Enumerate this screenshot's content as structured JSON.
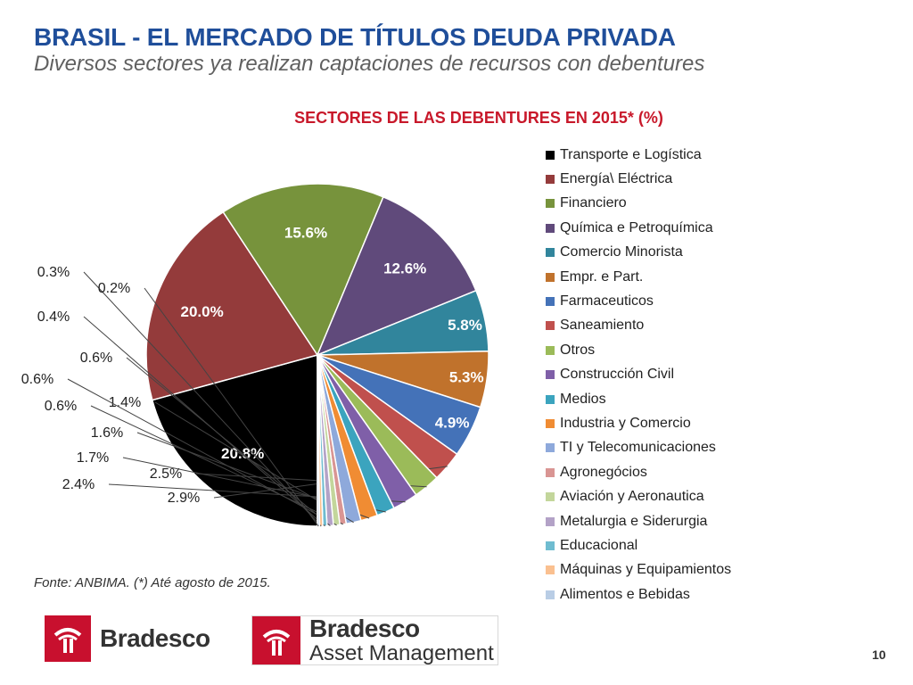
{
  "header": {
    "title": "BRASIL - EL MERCADO DE TÍTULOS DEUDA PRIVADA",
    "subtitle": "Diversos sectores ya realizan captaciones de recursos con debentures"
  },
  "chart_data": {
    "type": "pie",
    "title": "SECTORES DE LAS DEBENTURES EN 2015* (%)",
    "legend_position": "right",
    "slices": [
      {
        "label": "Transporte e Logística",
        "value": 20.8,
        "value_label": "20.8%",
        "color": "#000000"
      },
      {
        "label": "Energía\\ Eléctrica",
        "value": 20.0,
        "value_label": "20.0%",
        "color": "#943b3b"
      },
      {
        "label": "Financiero",
        "value": 15.6,
        "value_label": "15.6%",
        "color": "#77933c"
      },
      {
        "label": "Química e Petroquímica",
        "value": 12.6,
        "value_label": "12.6%",
        "color": "#604a7b"
      },
      {
        "label": "Comercio Minorista",
        "value": 5.8,
        "value_label": "5.8%",
        "color": "#31859c"
      },
      {
        "label": "Empr. e Part.",
        "value": 5.3,
        "value_label": "5.3%",
        "color": "#c0722c"
      },
      {
        "label": "Farmaceuticos",
        "value": 4.9,
        "value_label": "4.9%",
        "color": "#4472b8"
      },
      {
        "label": "Saneamiento",
        "value": 2.9,
        "value_label": "2.9%",
        "color": "#c0504d"
      },
      {
        "label": "Otros",
        "value": 2.5,
        "value_label": "2.5%",
        "color": "#9bbb59"
      },
      {
        "label": "Construcción Civil",
        "value": 2.4,
        "value_label": "2.4%",
        "color": "#7f5fa8"
      },
      {
        "label": "Medios",
        "value": 1.7,
        "value_label": "1.7%",
        "color": "#3ba4be"
      },
      {
        "label": "Industria y Comercio",
        "value": 1.6,
        "value_label": "1.6%",
        "color": "#f08c33"
      },
      {
        "label": "TI y Telecomunicaciones",
        "value": 1.4,
        "value_label": "1.4%",
        "color": "#8ea9db"
      },
      {
        "label": "Agronegócios",
        "value": 0.6,
        "value_label": "0.6%",
        "color": "#d99593"
      },
      {
        "label": "Aviación y Aeronautica",
        "value": 0.6,
        "value_label": "0.6%",
        "color": "#c3d69b"
      },
      {
        "label": "Metalurgia e Siderurgia",
        "value": 0.6,
        "value_label": "0.6%",
        "color": "#b3a2c7"
      },
      {
        "label": "Educacional",
        "value": 0.4,
        "value_label": "0.4%",
        "color": "#6fbcd0"
      },
      {
        "label": "Máquinas y Equipamientos",
        "value": 0.3,
        "value_label": "0.3%",
        "color": "#fac090"
      },
      {
        "label": "Alimentos e Bebidas",
        "value": 0.2,
        "value_label": "0.2%",
        "color": "#b9cde5"
      }
    ]
  },
  "footer": {
    "source": "Fonte: ANBIMA. (*) Até agosto de 2015.",
    "page_number": "10",
    "logo_bradesco": "Bradesco",
    "logo_asset_line1": "Bradesco",
    "logo_asset_line2": "Asset Management",
    "brand_color": "#c8102e"
  }
}
